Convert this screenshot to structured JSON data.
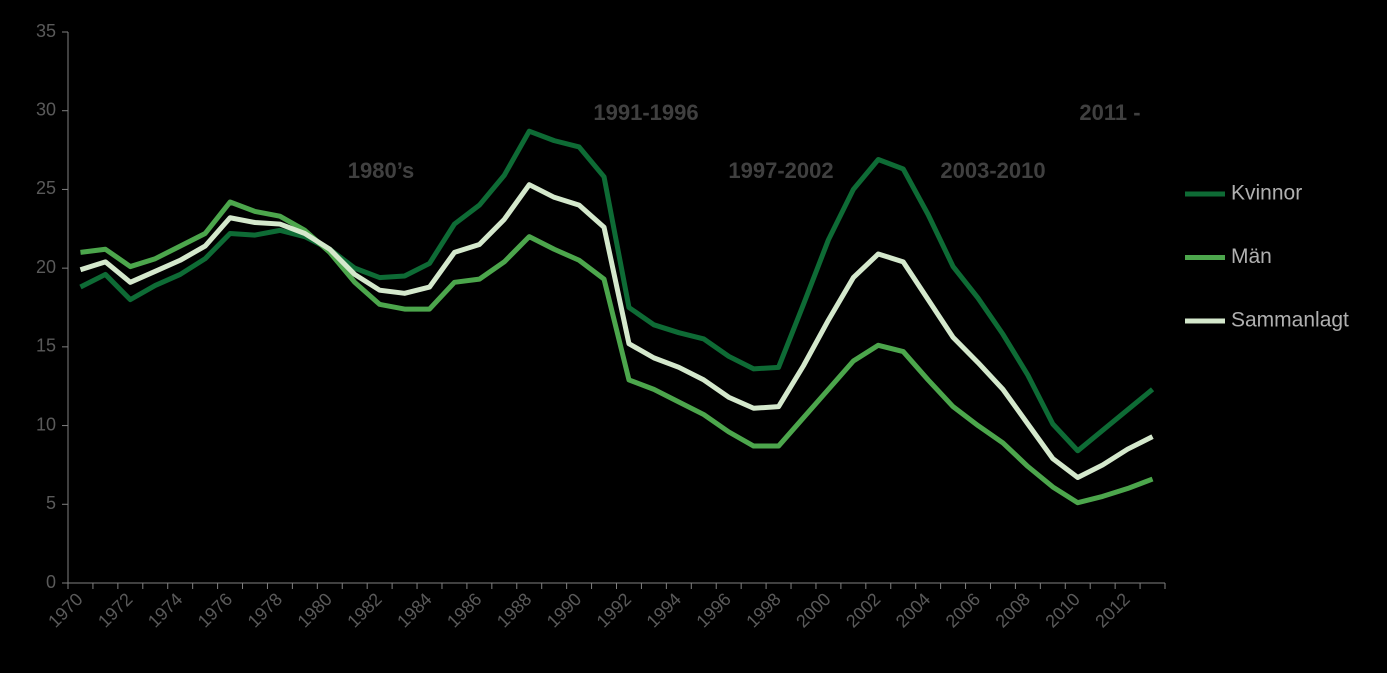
{
  "chart_data": {
    "type": "line",
    "categories": [
      "1970",
      null,
      "1972",
      null,
      "1974",
      null,
      "1976",
      null,
      "1978",
      null,
      "1980",
      null,
      "1982",
      null,
      "1984",
      null,
      "1986",
      null,
      "1988",
      null,
      "1990",
      null,
      "1992",
      null,
      "1994",
      null,
      "1996",
      null,
      "1998",
      null,
      "2000",
      null,
      "2002",
      null,
      "2004",
      null,
      "2006",
      null,
      "2008",
      null,
      "2010",
      null,
      "2012",
      null
    ],
    "series": [
      {
        "name": "Kvinnor",
        "color": "#0e6b35",
        "values": [
          18.8,
          19.6,
          18.0,
          18.9,
          19.6,
          20.6,
          22.2,
          22.1,
          22.4,
          22.0,
          21.2,
          20.0,
          19.4,
          19.5,
          20.3,
          22.8,
          24.0,
          25.9,
          28.7,
          28.1,
          27.7,
          25.8,
          17.5,
          16.4,
          15.9,
          15.5,
          14.4,
          13.6,
          13.7,
          17.7,
          21.8,
          25.0,
          26.9,
          26.3,
          23.4,
          20.1,
          18.1,
          15.8,
          13.2,
          10.1,
          8.4,
          9.7,
          11.0,
          12.3
        ]
      },
      {
        "name": "Män",
        "color": "#4ca64c",
        "values": [
          21.0,
          21.2,
          20.1,
          20.6,
          21.4,
          22.2,
          24.2,
          23.6,
          23.3,
          22.4,
          21.0,
          19.1,
          17.7,
          17.4,
          17.4,
          19.1,
          19.3,
          20.4,
          22.0,
          21.2,
          20.5,
          19.3,
          12.9,
          12.3,
          11.5,
          10.7,
          9.6,
          8.7,
          8.7,
          10.5,
          12.3,
          14.1,
          15.1,
          14.7,
          12.9,
          11.2,
          10.0,
          8.9,
          7.4,
          6.1,
          5.1,
          5.5,
          6.0,
          6.6
        ]
      },
      {
        "name": "Sammanlagt",
        "color": "#d4e8cc",
        "values": [
          19.9,
          20.4,
          19.1,
          19.8,
          20.5,
          21.4,
          23.2,
          22.9,
          22.8,
          22.2,
          21.2,
          19.6,
          18.6,
          18.4,
          18.8,
          21.0,
          21.5,
          23.1,
          25.3,
          24.5,
          24.0,
          22.6,
          15.2,
          14.3,
          13.7,
          12.9,
          11.8,
          11.1,
          11.2,
          13.8,
          16.7,
          19.4,
          20.9,
          20.4,
          18.0,
          15.6,
          14.0,
          12.3,
          10.1,
          7.9,
          6.7,
          7.5,
          8.5,
          9.3
        ]
      }
    ],
    "ylim": [
      0,
      35
    ],
    "yticks": [
      0,
      5,
      10,
      15,
      20,
      25,
      30,
      35
    ],
    "annotations": [
      "1980’s",
      "1991-1996",
      "1997-2002",
      "2003-2010",
      "2011 -"
    ],
    "legend": "right"
  }
}
